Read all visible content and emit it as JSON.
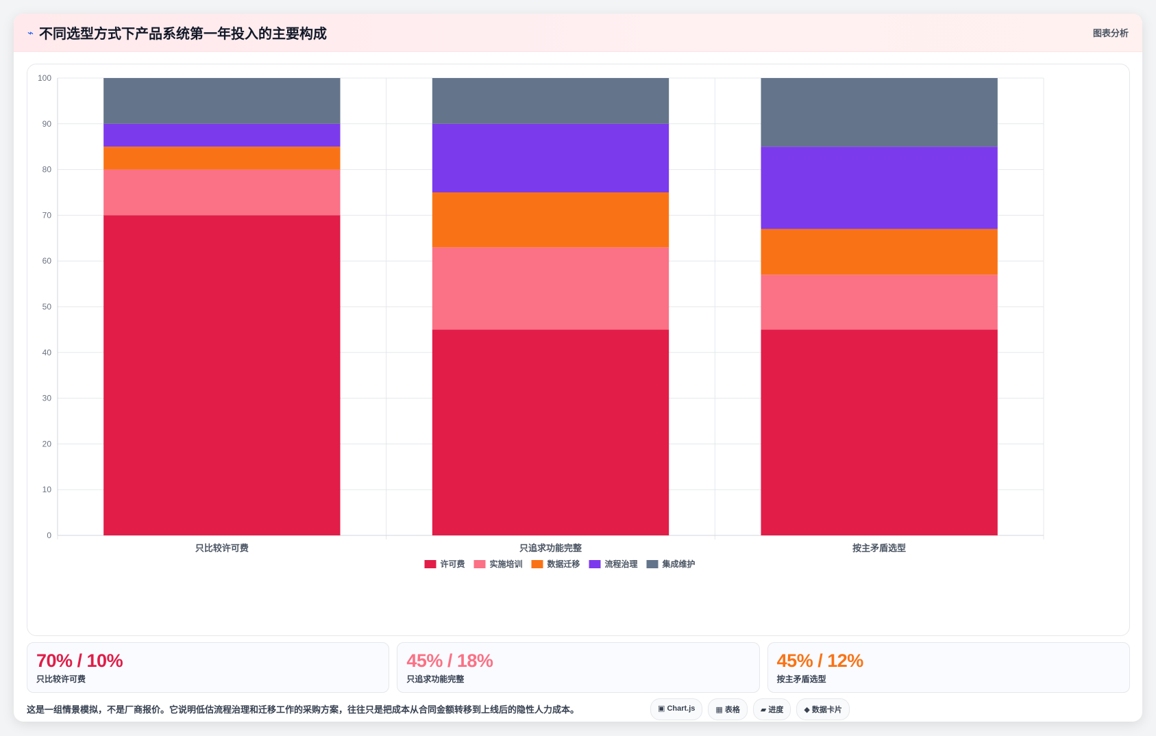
{
  "header": {
    "icon": "zap-icon",
    "title": "不同选型方式下产品系统第一年投入的主要构成",
    "right_label": "图表分析"
  },
  "chart_data": {
    "type": "bar",
    "stacked": true,
    "categories": [
      "只比较许可费",
      "只追求功能完整",
      "按主矛盾选型"
    ],
    "series": [
      {
        "name": "许可费",
        "color": "#e11d48",
        "values": [
          70,
          45,
          45
        ]
      },
      {
        "name": "实施培训",
        "color": "#fb7185",
        "values": [
          10,
          18,
          12
        ]
      },
      {
        "name": "数据迁移",
        "color": "#f97316",
        "values": [
          5,
          12,
          10
        ]
      },
      {
        "name": "流程治理",
        "color": "#7c3aed",
        "values": [
          5,
          15,
          18
        ]
      },
      {
        "name": "集成维护",
        "color": "#64748b",
        "values": [
          10,
          10,
          15
        ]
      }
    ],
    "ylim": [
      0,
      100
    ],
    "yticks": [
      0,
      10,
      20,
      30,
      40,
      50,
      60,
      70,
      80,
      90,
      100
    ],
    "grid": true,
    "legend": "bottom"
  },
  "stats": [
    {
      "value": "70% / 10%",
      "label": "只比较许可费",
      "color": "#e11d48"
    },
    {
      "value": "45% / 18%",
      "label": "只追求功能完整",
      "color": "#fb7185"
    },
    {
      "value": "45% / 12%",
      "label": "按主矛盾选型",
      "color": "#f97316"
    }
  ],
  "footer": {
    "note": "这是一组情景模拟，不是厂商报价。它说明低估流程治理和迁移工作的采购方案，往往只是把成本从合同金额转移到上线后的隐性人力成本。",
    "pills": [
      {
        "label": "▣ Chart.js",
        "icon": "chart-icon"
      },
      {
        "label": "▦ 表格",
        "icon": "table-icon"
      },
      {
        "label": "▰ 进度",
        "icon": "progress-icon"
      },
      {
        "label": "◆ 数据卡片",
        "icon": "card-icon"
      }
    ]
  }
}
